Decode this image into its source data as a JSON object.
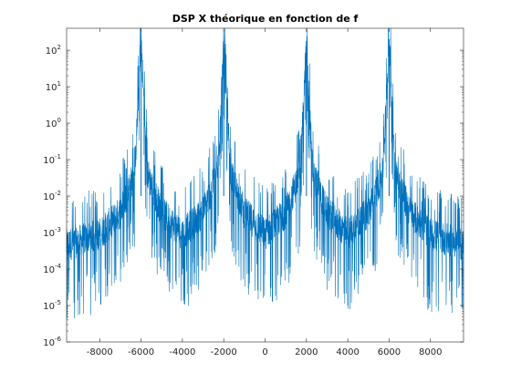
{
  "chart_data": {
    "type": "line",
    "title": "DSP X théorique en fonction de f",
    "xlabel": "",
    "ylabel": "",
    "x_scale": "linear",
    "y_scale": "log",
    "xlim": [
      -9600,
      9600
    ],
    "ylim": [
      1e-06,
      400
    ],
    "x_ticks": [
      -8000,
      -6000,
      -4000,
      -2000,
      0,
      2000,
      4000,
      6000,
      8000
    ],
    "x_tick_labels": [
      "-8000",
      "-6000",
      "-4000",
      "-2000",
      "0",
      "2000",
      "4000",
      "6000",
      "8000"
    ],
    "y_ticks": [
      1e-06,
      1e-05,
      0.0001,
      0.001,
      0.01,
      0.1,
      1,
      10,
      100
    ],
    "y_tick_exponents": [
      "-6",
      "-5",
      "-4",
      "-3",
      "-2",
      "-1",
      "0",
      "1",
      "2"
    ],
    "y_tick_base": "10",
    "grid": false,
    "legend": "none",
    "series_color": "#0072BD",
    "series": [
      {
        "description_points": "envelope of peaks",
        "peaks": [
          {
            "x": -6000,
            "y": 200
          },
          {
            "x": -2000,
            "y": 180
          },
          {
            "x": 2000,
            "y": 180
          },
          {
            "x": 6000,
            "y": 200
          }
        ],
        "sample_envelope": [
          {
            "x": -9600,
            "y": 0.0005
          },
          {
            "x": -8000,
            "y": 0.001
          },
          {
            "x": -7000,
            "y": 0.004
          },
          {
            "x": -6300,
            "y": 0.05
          },
          {
            "x": -6000,
            "y": 200
          },
          {
            "x": -5700,
            "y": 0.05
          },
          {
            "x": -5000,
            "y": 0.004
          },
          {
            "x": -4000,
            "y": 0.001
          },
          {
            "x": -3000,
            "y": 0.004
          },
          {
            "x": -2300,
            "y": 0.05
          },
          {
            "x": -2000,
            "y": 180
          },
          {
            "x": -1700,
            "y": 0.05
          },
          {
            "x": -1000,
            "y": 0.004
          },
          {
            "x": 0,
            "y": 0.001
          },
          {
            "x": 1000,
            "y": 0.004
          },
          {
            "x": 1700,
            "y": 0.05
          },
          {
            "x": 2000,
            "y": 180
          },
          {
            "x": 2300,
            "y": 0.05
          },
          {
            "x": 3000,
            "y": 0.004
          },
          {
            "x": 4000,
            "y": 0.001
          },
          {
            "x": 5000,
            "y": 0.004
          },
          {
            "x": 5700,
            "y": 0.05
          },
          {
            "x": 6000,
            "y": 200
          },
          {
            "x": 6300,
            "y": 0.05
          },
          {
            "x": 7000,
            "y": 0.004
          },
          {
            "x": 8000,
            "y": 0.001
          },
          {
            "x": 9600,
            "y": 0.0005
          }
        ]
      }
    ]
  }
}
